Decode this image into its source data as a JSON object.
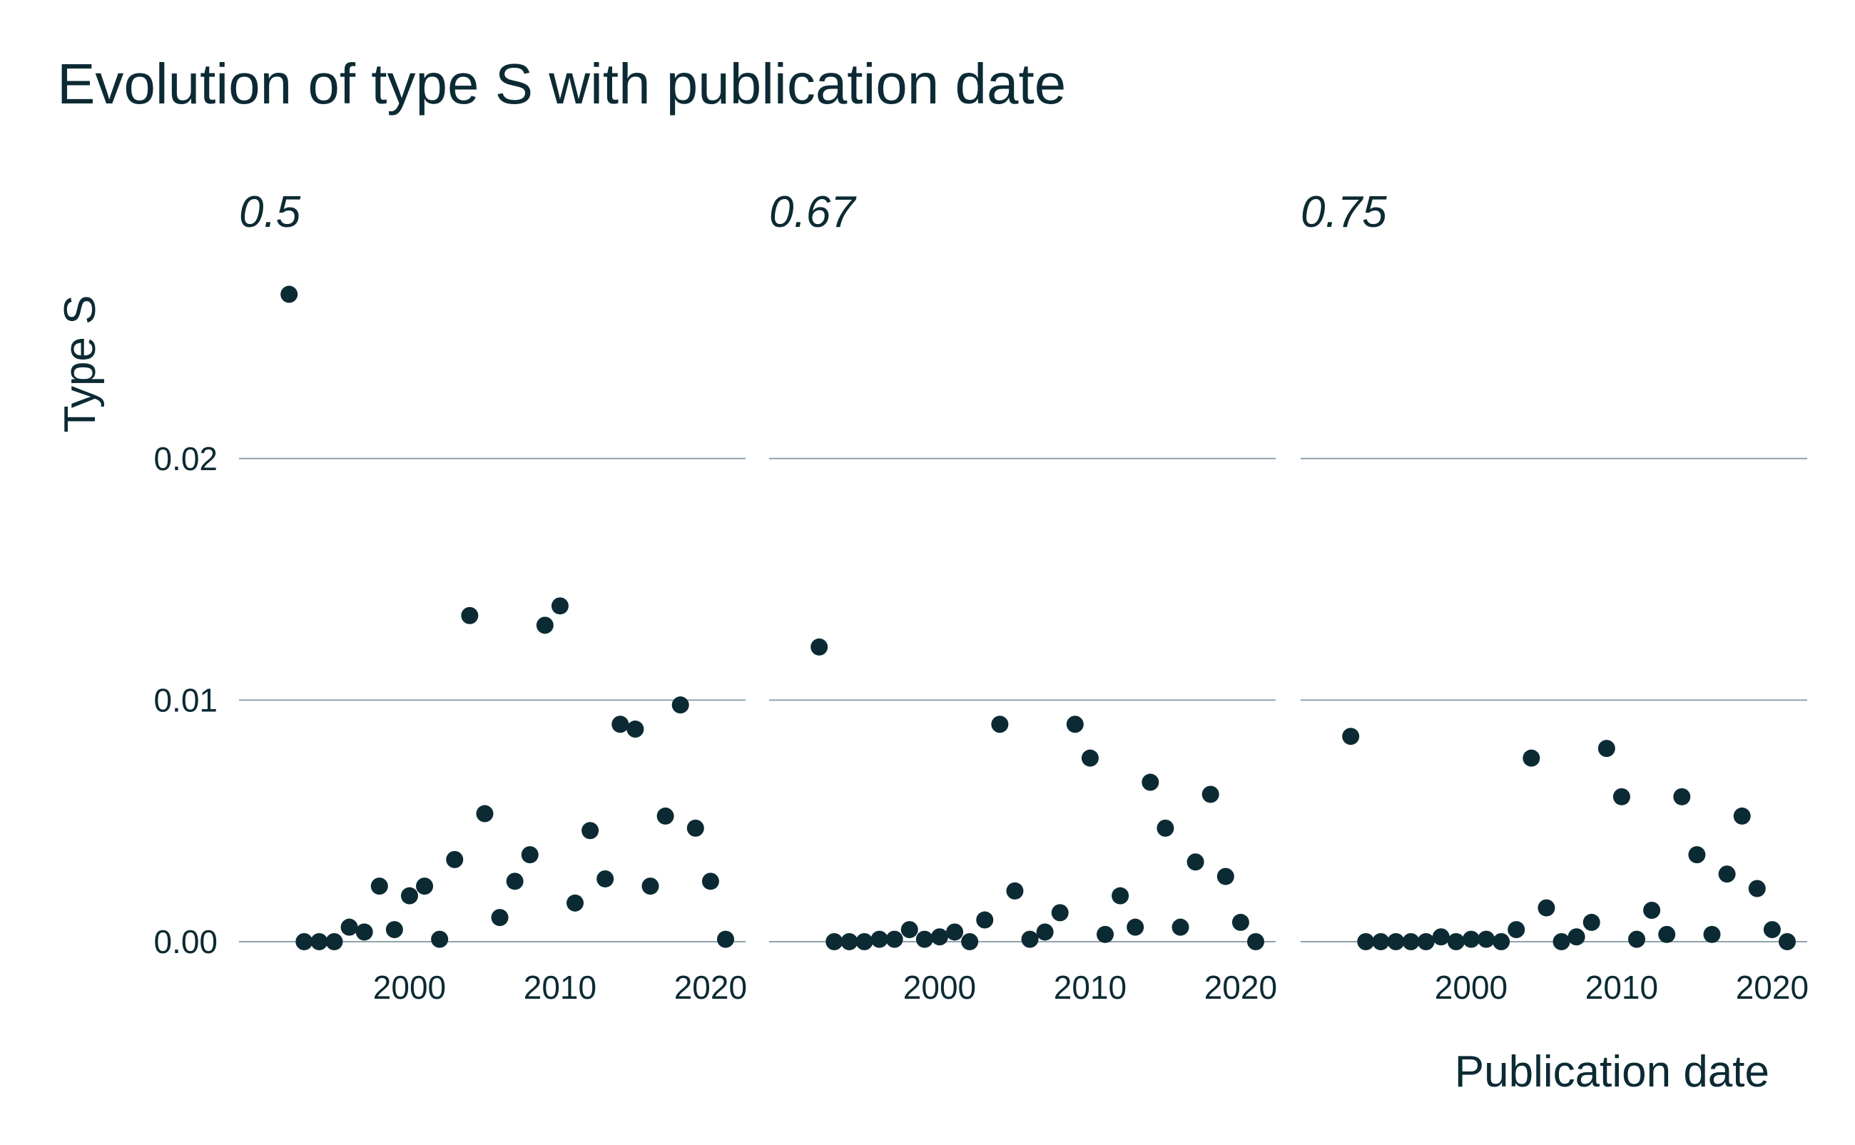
{
  "chart_data": {
    "type": "scatter",
    "title": "Evolution of type S with publication date",
    "xlabel": "Publication date",
    "ylabel": "Type S",
    "xlim": [
      1990,
      2021
    ],
    "ylim": [
      0.0,
      0.0285
    ],
    "x_ticks": [
      2000,
      2010,
      2020
    ],
    "y_ticks": [
      0.0,
      0.01,
      0.02
    ],
    "y_tick_labels": [
      "0.00",
      "0.01",
      "0.02"
    ],
    "grid": "horizontal",
    "legend": "none",
    "colors": {
      "points": "#0c2a33",
      "grid": "#8fa3ad",
      "text": "#0c2a33"
    },
    "facets": [
      {
        "label": "0.5",
        "points": [
          [
            1992,
            0.0268
          ],
          [
            1993,
            0.0
          ],
          [
            1994,
            0.0
          ],
          [
            1995,
            0.0
          ],
          [
            1996,
            0.0006
          ],
          [
            1997,
            0.0004
          ],
          [
            1998,
            0.0023
          ],
          [
            1999,
            0.0005
          ],
          [
            2000,
            0.0019
          ],
          [
            2001,
            0.0023
          ],
          [
            2002,
            0.0001
          ],
          [
            2003,
            0.0034
          ],
          [
            2004,
            0.0135
          ],
          [
            2005,
            0.0053
          ],
          [
            2006,
            0.001
          ],
          [
            2007,
            0.0025
          ],
          [
            2008,
            0.0036
          ],
          [
            2009,
            0.0131
          ],
          [
            2010,
            0.0139
          ],
          [
            2011,
            0.0016
          ],
          [
            2012,
            0.0046
          ],
          [
            2013,
            0.0026
          ],
          [
            2014,
            0.009
          ],
          [
            2015,
            0.0088
          ],
          [
            2016,
            0.0023
          ],
          [
            2017,
            0.0052
          ],
          [
            2018,
            0.0098
          ],
          [
            2019,
            0.0047
          ],
          [
            2020,
            0.0025
          ],
          [
            2021,
            0.0001
          ]
        ]
      },
      {
        "label": "0.67",
        "points": [
          [
            1992,
            0.0122
          ],
          [
            1993,
            0.0
          ],
          [
            1994,
            0.0
          ],
          [
            1995,
            0.0
          ],
          [
            1996,
            0.0001
          ],
          [
            1997,
            0.0001
          ],
          [
            1998,
            0.0005
          ],
          [
            1999,
            0.0001
          ],
          [
            2000,
            0.0002
          ],
          [
            2001,
            0.0004
          ],
          [
            2002,
            0.0
          ],
          [
            2003,
            0.0009
          ],
          [
            2004,
            0.009
          ],
          [
            2005,
            0.0021
          ],
          [
            2006,
            0.0001
          ],
          [
            2007,
            0.0004
          ],
          [
            2008,
            0.0012
          ],
          [
            2009,
            0.009
          ],
          [
            2010,
            0.0076
          ],
          [
            2011,
            0.0003
          ],
          [
            2012,
            0.0019
          ],
          [
            2013,
            0.0006
          ],
          [
            2014,
            0.0066
          ],
          [
            2015,
            0.0047
          ],
          [
            2016,
            0.0006
          ],
          [
            2017,
            0.0033
          ],
          [
            2018,
            0.0061
          ],
          [
            2019,
            0.0027
          ],
          [
            2020,
            0.0008
          ],
          [
            2021,
            0.0
          ]
        ]
      },
      {
        "label": "0.75",
        "points": [
          [
            1992,
            0.0085
          ],
          [
            1993,
            0.0
          ],
          [
            1994,
            0.0
          ],
          [
            1995,
            0.0
          ],
          [
            1996,
            0.0
          ],
          [
            1997,
            0.0
          ],
          [
            1998,
            0.0002
          ],
          [
            1999,
            0.0
          ],
          [
            2000,
            0.0001
          ],
          [
            2001,
            0.0001
          ],
          [
            2002,
            0.0
          ],
          [
            2003,
            0.0005
          ],
          [
            2004,
            0.0076
          ],
          [
            2005,
            0.0014
          ],
          [
            2006,
            0.0
          ],
          [
            2007,
            0.0002
          ],
          [
            2008,
            0.0008
          ],
          [
            2009,
            0.008
          ],
          [
            2010,
            0.006
          ],
          [
            2011,
            0.0001
          ],
          [
            2012,
            0.0013
          ],
          [
            2013,
            0.0003
          ],
          [
            2014,
            0.006
          ],
          [
            2015,
            0.0036
          ],
          [
            2016,
            0.0003
          ],
          [
            2017,
            0.0028
          ],
          [
            2018,
            0.0052
          ],
          [
            2019,
            0.0022
          ],
          [
            2020,
            0.0005
          ],
          [
            2021,
            0.0
          ]
        ]
      }
    ]
  }
}
